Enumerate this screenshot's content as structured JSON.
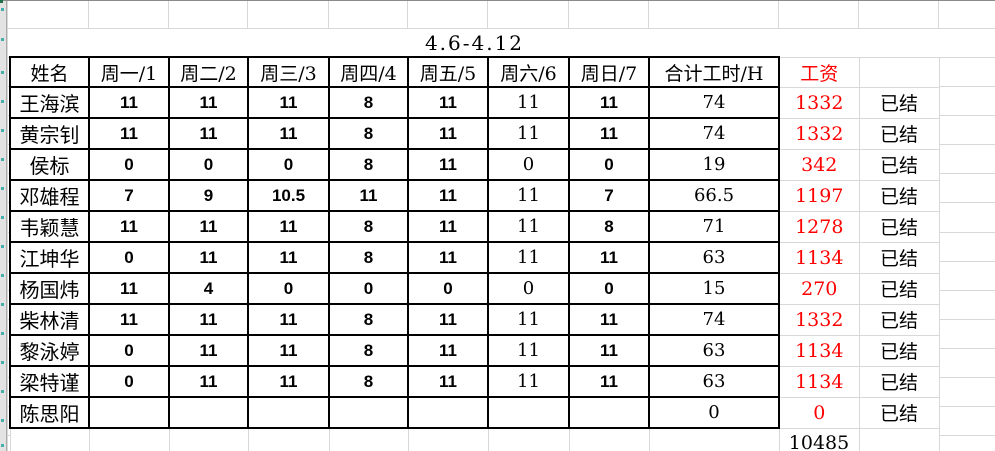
{
  "sheet": {
    "title": "4.6-4.12",
    "columns": [
      "姓名",
      "周一/1",
      "周二/2",
      "周三/3",
      "周四/4",
      "周五/5",
      "周六/6",
      "周日/7",
      "合计工时/H"
    ],
    "wage_header": "工资",
    "rows": [
      {
        "name": "王海滨",
        "days": [
          "11",
          "11",
          "11",
          "8",
          "11",
          "11",
          "11"
        ],
        "total": "74",
        "wage": "1332",
        "status": "已结"
      },
      {
        "name": "黄宗钊",
        "days": [
          "11",
          "11",
          "11",
          "8",
          "11",
          "11",
          "11"
        ],
        "total": "74",
        "wage": "1332",
        "status": "已结"
      },
      {
        "name": "侯标",
        "days": [
          "0",
          "0",
          "0",
          "8",
          "11",
          "0",
          "0"
        ],
        "total": "19",
        "wage": "342",
        "status": "已结"
      },
      {
        "name": "邓雄程",
        "days": [
          "7",
          "9",
          "10.5",
          "11",
          "11",
          "11",
          "7"
        ],
        "total": "66.5",
        "wage": "1197",
        "status": "已结"
      },
      {
        "name": "韦颖慧",
        "days": [
          "11",
          "11",
          "11",
          "8",
          "11",
          "11",
          "8"
        ],
        "total": "71",
        "wage": "1278",
        "status": "已结"
      },
      {
        "name": "江坤华",
        "days": [
          "0",
          "11",
          "11",
          "8",
          "11",
          "11",
          "11"
        ],
        "total": "63",
        "wage": "1134",
        "status": "已结"
      },
      {
        "name": "杨国炜",
        "days": [
          "11",
          "4",
          "0",
          "0",
          "0",
          "0",
          "0"
        ],
        "total": "15",
        "wage": "270",
        "status": "已结"
      },
      {
        "name": "柴林清",
        "days": [
          "11",
          "11",
          "11",
          "8",
          "11",
          "11",
          "11"
        ],
        "total": "74",
        "wage": "1332",
        "status": "已结"
      },
      {
        "name": "黎泳婷",
        "days": [
          "0",
          "11",
          "11",
          "8",
          "11",
          "11",
          "11"
        ],
        "total": "63",
        "wage": "1134",
        "status": "已结"
      },
      {
        "name": "梁特谨",
        "days": [
          "0",
          "11",
          "11",
          "8",
          "11",
          "11",
          "11"
        ],
        "total": "63",
        "wage": "1134",
        "status": "已结"
      },
      {
        "name": "陈思阳",
        "days": [
          "",
          "",
          "",
          "",
          "",
          "",
          ""
        ],
        "total": "0",
        "wage": "0",
        "status": "已结"
      }
    ],
    "grand_total": "10485",
    "colors": {
      "wage_red": "#ff0000",
      "grid": "#d8d8d8",
      "table_border": "#000000",
      "row_header_bg": "#e3e3e3",
      "row_mark_teal": "#48afa8"
    }
  }
}
